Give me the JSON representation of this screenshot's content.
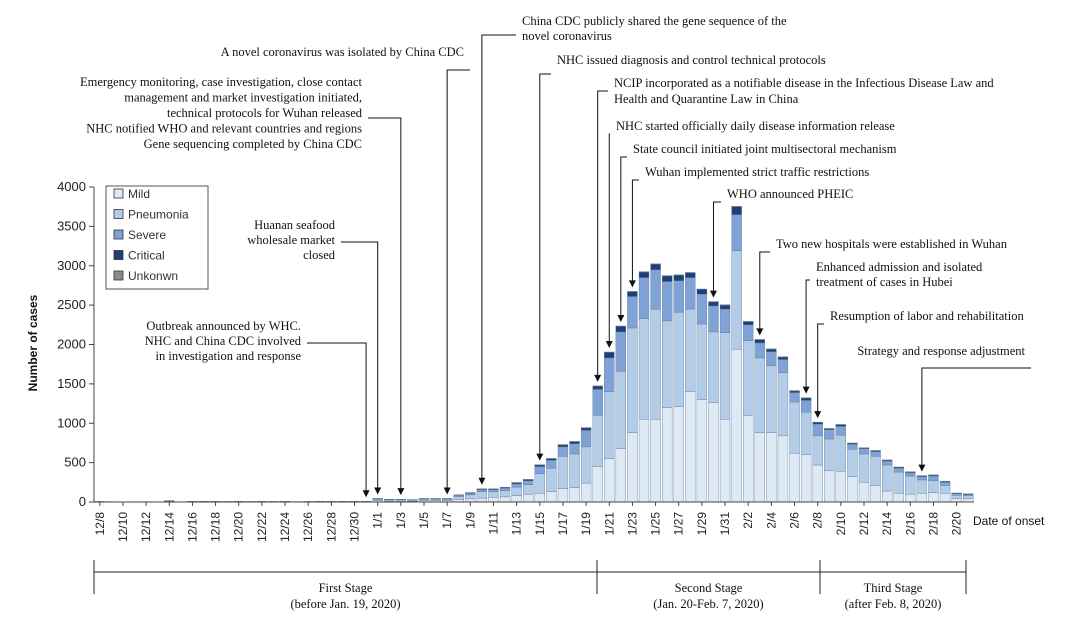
{
  "chart_data": {
    "type": "bar",
    "stacked": true,
    "xlabel": "Date of onset",
    "ylabel": "Number of cases",
    "ylim": [
      0,
      4000
    ],
    "yticks": [
      0,
      500,
      1000,
      1500,
      2000,
      2500,
      3000,
      3500,
      4000
    ],
    "categories": [
      "12/8",
      "12/9",
      "12/10",
      "12/11",
      "12/12",
      "12/13",
      "12/14",
      "12/15",
      "12/16",
      "12/17",
      "12/18",
      "12/19",
      "12/20",
      "12/21",
      "12/22",
      "12/23",
      "12/24",
      "12/25",
      "12/26",
      "12/27",
      "12/28",
      "12/29",
      "12/30",
      "12/31",
      "1/1",
      "1/2",
      "1/3",
      "1/4",
      "1/5",
      "1/6",
      "1/7",
      "1/8",
      "1/9",
      "1/10",
      "1/11",
      "1/12",
      "1/13",
      "1/14",
      "1/15",
      "1/16",
      "1/17",
      "1/18",
      "1/19",
      "1/20",
      "1/21",
      "1/22",
      "1/23",
      "1/24",
      "1/25",
      "1/26",
      "1/27",
      "1/28",
      "1/29",
      "1/30",
      "1/31",
      "2/1",
      "2/2",
      "2/3",
      "2/4",
      "2/5",
      "2/6",
      "2/7",
      "2/8",
      "2/9",
      "2/10",
      "2/11",
      "2/12",
      "2/13",
      "2/14",
      "2/15",
      "2/16",
      "2/17",
      "2/18",
      "2/19",
      "2/20",
      "2/21"
    ],
    "tick_labels": [
      "12/8",
      "12/10",
      "12/12",
      "12/14",
      "12/16",
      "12/18",
      "12/20",
      "12/22",
      "12/24",
      "12/26",
      "12/28",
      "12/30",
      "1/1",
      "1/3",
      "1/5",
      "1/7",
      "1/9",
      "1/11",
      "1/13",
      "1/15",
      "1/17",
      "1/19",
      "1/21",
      "1/23",
      "1/25",
      "1/27",
      "1/29",
      "1/31",
      "2/2",
      "2/4",
      "2/6",
      "2/8",
      "2/10",
      "2/12",
      "2/14",
      "2/16",
      "2/18",
      "2/20"
    ],
    "legend_placement": "top-left",
    "series": [
      {
        "name": "Mild",
        "color": "#dde9f5",
        "values": [
          3,
          2,
          1,
          2,
          2,
          1,
          6,
          1,
          3,
          3,
          3,
          3,
          3,
          3,
          3,
          3,
          3,
          2,
          3,
          3,
          3,
          3,
          3,
          3,
          15,
          12,
          12,
          10,
          15,
          15,
          15,
          30,
          40,
          50,
          60,
          65,
          80,
          100,
          110,
          130,
          170,
          180,
          240,
          450,
          550,
          680,
          880,
          1050,
          1050,
          1200,
          1210,
          1400,
          1300,
          1260,
          1050,
          1940,
          1100,
          880,
          880,
          840,
          620,
          600,
          470,
          400,
          390,
          320,
          250,
          210,
          140,
          110,
          100,
          110,
          120,
          110,
          40,
          40
        ]
      },
      {
        "name": "Pneumonia",
        "color": "#b3cde8",
        "values": [
          3,
          2,
          1,
          2,
          2,
          1,
          8,
          1,
          4,
          4,
          4,
          3,
          4,
          3,
          4,
          3,
          4,
          2,
          3,
          4,
          4,
          4,
          4,
          4,
          18,
          15,
          15,
          13,
          18,
          18,
          18,
          40,
          50,
          80,
          70,
          80,
          110,
          120,
          250,
          300,
          410,
          430,
          460,
          650,
          850,
          980,
          1330,
          1280,
          1400,
          1100,
          1200,
          1050,
          960,
          900,
          1100,
          1250,
          950,
          950,
          850,
          800,
          650,
          540,
          370,
          400,
          460,
          350,
          360,
          370,
          330,
          270,
          230,
          170,
          150,
          100,
          45,
          40
        ]
      },
      {
        "name": "Severe",
        "color": "#7fa3d6",
        "values": [
          1,
          1,
          0,
          1,
          1,
          0,
          3,
          0,
          2,
          2,
          2,
          1,
          2,
          1,
          2,
          1,
          2,
          1,
          1,
          2,
          2,
          2,
          2,
          2,
          8,
          6,
          6,
          5,
          8,
          8,
          8,
          15,
          20,
          25,
          25,
          30,
          40,
          50,
          90,
          100,
          120,
          130,
          210,
          330,
          430,
          500,
          400,
          520,
          500,
          500,
          400,
          400,
          380,
          330,
          300,
          460,
          200,
          190,
          180,
          170,
          120,
          150,
          150,
          120,
          110,
          65,
          65,
          60,
          50,
          50,
          40,
          40,
          60,
          40,
          20,
          15
        ]
      },
      {
        "name": "Critical",
        "color": "#1f3f78",
        "values": [
          0,
          0,
          0,
          0,
          0,
          0,
          1,
          0,
          0,
          0,
          0,
          0,
          0,
          0,
          0,
          0,
          0,
          0,
          0,
          0,
          0,
          0,
          0,
          0,
          3,
          2,
          2,
          2,
          3,
          3,
          3,
          5,
          8,
          10,
          10,
          10,
          15,
          15,
          20,
          20,
          25,
          25,
          30,
          40,
          70,
          70,
          60,
          70,
          70,
          70,
          70,
          60,
          60,
          50,
          50,
          100,
          40,
          40,
          30,
          30,
          20,
          30,
          20,
          10,
          20,
          10,
          10,
          10,
          10,
          10,
          10,
          10,
          10,
          10,
          5,
          5
        ]
      },
      {
        "name": "Unkonwn",
        "color": "#8a8a8a",
        "values": [
          0,
          0,
          0,
          0,
          0,
          0,
          0,
          0,
          0,
          0,
          0,
          0,
          0,
          0,
          0,
          0,
          0,
          0,
          0,
          0,
          0,
          0,
          0,
          0,
          1,
          1,
          1,
          1,
          1,
          1,
          1,
          2,
          2,
          3,
          3,
          3,
          3,
          3,
          4,
          4,
          5,
          5,
          5,
          5,
          5,
          5,
          5,
          5,
          5,
          5,
          5,
          5,
          5,
          5,
          5,
          5,
          5,
          5,
          5,
          5,
          5,
          5,
          5,
          5,
          5,
          5,
          5,
          5,
          5,
          5,
          5,
          5,
          5,
          5,
          5,
          5
        ]
      }
    ],
    "annotations": [
      {
        "key": "ann_whc",
        "lines": [
          "Outbreak announced by WHC.",
          "NHC and China CDC involved",
          "in investigation and response"
        ],
        "date": "12/31",
        "align": "end"
      },
      {
        "key": "ann_huanan",
        "lines": [
          "Huanan seafood",
          "wholesale market",
          "closed"
        ],
        "date": "1/1",
        "align": "end"
      },
      {
        "key": "ann_emergency",
        "lines": [
          "Emergency monitoring, case investigation, close contact",
          "management and market investigation initiated,",
          "technical protocols for Wuhan released",
          "NHC notified WHO and relevant countries and regions",
          "Gene sequencing completed by China CDC"
        ],
        "date": "1/3",
        "align": "end"
      },
      {
        "key": "ann_isolated",
        "lines": [
          "A novel coronavirus was isolated by China CDC"
        ],
        "date": "1/7",
        "align": "end"
      },
      {
        "key": "ann_gene",
        "lines": [
          "China CDC publicly shared the gene sequence of the",
          "novel coronavirus"
        ],
        "date": "1/10",
        "align": "start"
      },
      {
        "key": "ann_nhc_protocols",
        "lines": [
          "NHC issued diagnosis and control technical protocols"
        ],
        "date": "1/15",
        "align": "start"
      },
      {
        "key": "ann_ncip",
        "lines": [
          "NCIP incorporated as a notifiable disease in the Infectious Disease Law and",
          "Health and Quarantine Law in China"
        ],
        "date": "1/20",
        "align": "start"
      },
      {
        "key": "ann_daily",
        "lines": [
          "NHC started officially daily disease information release"
        ],
        "date": "1/21",
        "align": "start"
      },
      {
        "key": "ann_council",
        "lines": [
          "State council initiated joint multisectoral mechanism"
        ],
        "date": "1/22",
        "align": "start"
      },
      {
        "key": "ann_wuhan",
        "lines": [
          "Wuhan implemented strict traffic restrictions"
        ],
        "date": "1/23",
        "align": "start"
      },
      {
        "key": "ann_pheic",
        "lines": [
          "WHO announced PHEIC"
        ],
        "date": "1/30",
        "align": "start"
      },
      {
        "key": "ann_hospitals",
        "lines": [
          "Two new hospitals were established in Wuhan"
        ],
        "date": "2/3",
        "align": "start"
      },
      {
        "key": "ann_hubei",
        "lines": [
          "Enhanced admission and isolated",
          "treatment of cases in Hubei"
        ],
        "date": "2/7",
        "align": "start"
      },
      {
        "key": "ann_labor",
        "lines": [
          "Resumption of labor and rehabilitation"
        ],
        "date": "2/8",
        "align": "start"
      },
      {
        "key": "ann_strategy",
        "lines": [
          "Strategy and response adjustment"
        ],
        "date": "2/17",
        "align": "end"
      }
    ],
    "stages": [
      {
        "name": "First Stage",
        "period": "(before Jan. 19, 2020)"
      },
      {
        "name": "Second Stage",
        "period": "(Jan. 20-Feb. 7, 2020)"
      },
      {
        "name": "Third Stage",
        "period": "(after Feb. 8, 2020)"
      }
    ]
  }
}
